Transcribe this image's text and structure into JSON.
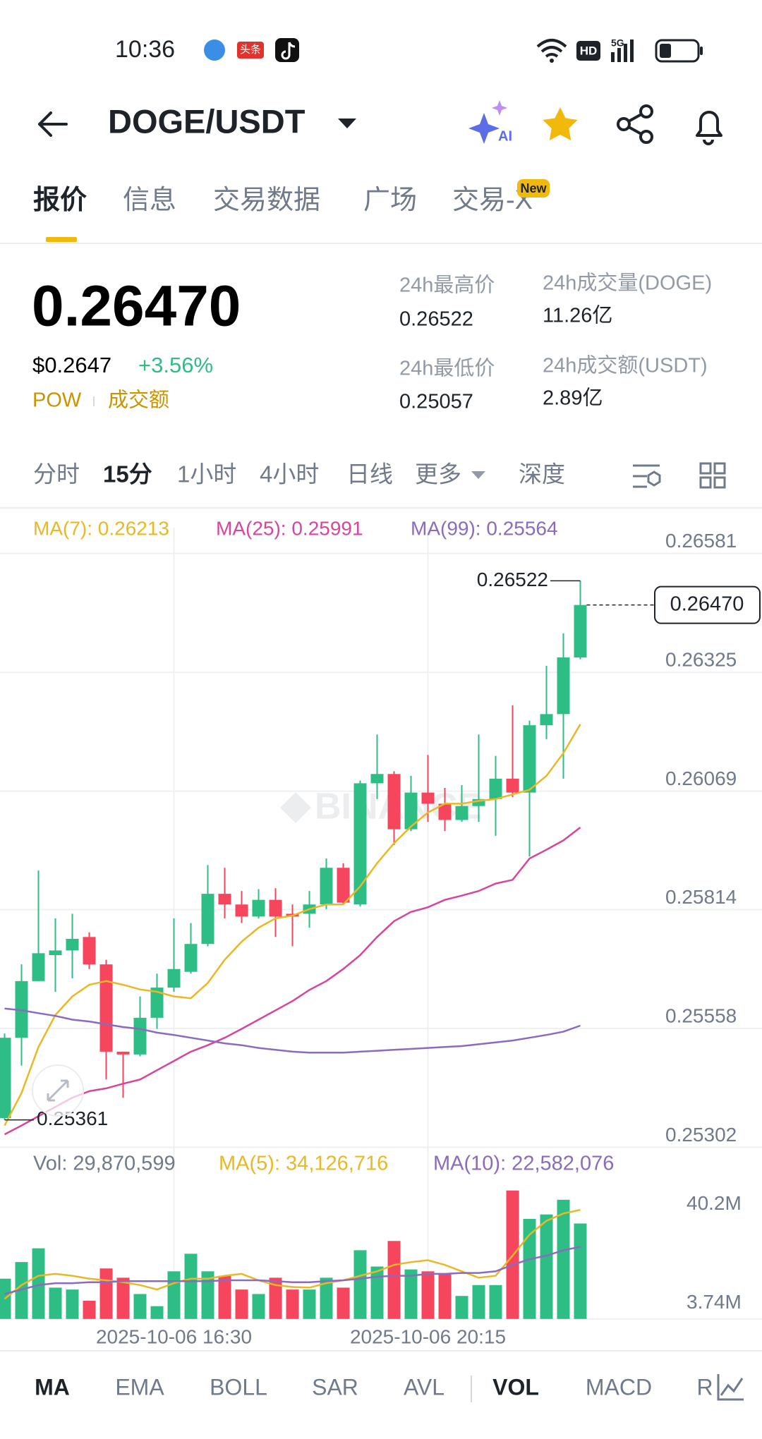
{
  "status_bar": {
    "time": "10:36",
    "badge": "头条",
    "hd": "HD",
    "network": "5G"
  },
  "header": {
    "pair": "DOGE/USDT",
    "ai": "AI"
  },
  "tabs": {
    "items": [
      "报价",
      "信息",
      "交易数据",
      "广场",
      "交易-X"
    ],
    "badge": "New"
  },
  "ticker": {
    "price": "0.26470",
    "usd": "$0.2647",
    "change": "+3.56%",
    "tags": [
      "POW",
      "成交额"
    ],
    "stats": [
      {
        "label": "24h最高价",
        "value": "0.26522"
      },
      {
        "label": "24h最低价",
        "value": "0.25057"
      },
      {
        "label": "24h成交量(DOGE)",
        "value": "11.26亿"
      },
      {
        "label": "24h成交额(USDT)",
        "value": "2.89亿"
      }
    ]
  },
  "intervals": {
    "items": [
      "分时",
      "15分",
      "1小时",
      "4小时",
      "日线",
      "更多",
      "深度"
    ]
  },
  "chart_data": {
    "type": "candlestick",
    "watermark": "BINANCE",
    "categories": [
      null,
      null,
      null,
      null,
      null,
      null,
      null,
      null,
      null,
      null,
      "2025-10-06 16:30",
      null,
      null,
      null,
      null,
      null,
      null,
      null,
      null,
      null,
      null,
      null,
      null,
      null,
      null,
      "2025-10-06 20:15",
      null,
      null,
      null,
      null,
      null,
      null,
      null,
      null,
      null
    ],
    "open": [
      0.25365,
      0.25538,
      0.2566,
      0.25716,
      0.25726,
      0.25755,
      0.25696,
      0.25508,
      0.25502,
      0.25581,
      0.25646,
      0.2568,
      0.2574,
      0.25848,
      0.25825,
      0.25799,
      0.25835,
      0.25805,
      0.25805,
      0.25825,
      0.25904,
      0.25825,
      0.26086,
      0.26106,
      0.25987,
      0.26066,
      0.26042,
      0.26007,
      0.26037,
      0.26052,
      0.26096,
      0.26066,
      0.26211,
      0.26235,
      0.26357
    ],
    "high": [
      0.25547,
      0.25696,
      0.25898,
      0.25795,
      0.25805,
      0.25765,
      0.25706,
      0.25508,
      0.25627,
      0.25676,
      0.25795,
      0.25785,
      0.2591,
      0.25904,
      0.25854,
      0.25858,
      0.2586,
      0.25825,
      0.25854,
      0.25924,
      0.25914,
      0.26092,
      0.26191,
      0.26112,
      0.26102,
      0.26147,
      0.26076,
      0.26082,
      0.26191,
      0.26145,
      0.26254,
      0.26221,
      0.26339,
      0.26409,
      0.26522
    ],
    "low": [
      0.25361,
      0.25478,
      0.2566,
      0.25637,
      0.25666,
      0.25686,
      0.25448,
      0.25409,
      0.25498,
      0.25557,
      0.25637,
      0.25676,
      0.25735,
      0.25795,
      0.25785,
      0.25795,
      0.25755,
      0.25735,
      0.25775,
      0.25815,
      0.25825,
      0.25821,
      0.26052,
      0.25953,
      0.25983,
      0.26003,
      0.25983,
      0.26003,
      0.26003,
      0.25973,
      0.26056,
      0.25928,
      0.26181,
      0.26096,
      0.26353
    ],
    "close": [
      0.25538,
      0.2566,
      0.2572,
      0.25726,
      0.25751,
      0.25696,
      0.25508,
      0.25502,
      0.25581,
      0.25646,
      0.25686,
      0.2574,
      0.25848,
      0.25825,
      0.25799,
      0.25835,
      0.25799,
      0.25799,
      0.25825,
      0.25904,
      0.25829,
      0.26086,
      0.26106,
      0.25987,
      0.26066,
      0.26042,
      0.26007,
      0.26037,
      0.26052,
      0.26096,
      0.26066,
      0.26211,
      0.26235,
      0.26357,
      0.2647
    ],
    "up_color": "#2ebd85",
    "down_color": "#f6465d",
    "ylim": [
      0.25302,
      0.26581
    ],
    "yticks": [
      0.26581,
      0.26325,
      0.26069,
      0.25814,
      0.25558,
      0.25302
    ],
    "grid": true,
    "current": {
      "value": 0.2647,
      "label": "0.26470"
    },
    "series": [
      {
        "name": "MA(7): 0.26213",
        "color": "#e9b824",
        "values": [
          0.25349,
          0.25419,
          0.25518,
          0.25587,
          0.25627,
          0.25652,
          0.2566,
          0.25652,
          0.25642,
          0.25637,
          0.25627,
          0.25623,
          0.25656,
          0.25706,
          0.25745,
          0.25775,
          0.25795,
          0.25801,
          0.25815,
          0.25825,
          0.25825,
          0.25864,
          0.25914,
          0.25957,
          0.25993,
          0.26023,
          0.26042,
          0.26042,
          0.26048,
          0.26052,
          0.26062,
          0.26072,
          0.26102,
          0.26151,
          0.26213
        ]
      },
      {
        "name": "MA(25): 0.25991",
        "color": "#d6479b",
        "values": [
          0.2533,
          0.25349,
          0.25369,
          0.25389,
          0.25409,
          0.25423,
          0.25429,
          0.25439,
          0.25448,
          0.25468,
          0.25488,
          0.25508,
          0.25522,
          0.25538,
          0.25557,
          0.25577,
          0.25597,
          0.25617,
          0.25641,
          0.2566,
          0.25686,
          0.25716,
          0.25755,
          0.25789,
          0.25809,
          0.25819,
          0.25835,
          0.25844,
          0.25854,
          0.2587,
          0.25878,
          0.25924,
          0.25943,
          0.25963,
          0.25991
        ]
      },
      {
        "name": "MA(99): 0.25564",
        "color": "#8b6bbd",
        "values": [
          0.25601,
          0.25597,
          0.25591,
          0.25585,
          0.25577,
          0.25573,
          0.25567,
          0.25561,
          0.25557,
          0.25549,
          0.25544,
          0.25538,
          0.25532,
          0.25526,
          0.25522,
          0.25516,
          0.25512,
          0.25508,
          0.25506,
          0.25506,
          0.25506,
          0.25508,
          0.2551,
          0.25512,
          0.25514,
          0.25516,
          0.25518,
          0.2552,
          0.25524,
          0.25528,
          0.25532,
          0.25538,
          0.25544,
          0.25551,
          0.25564
        ]
      }
    ],
    "volume": {
      "header": "Vol: 29,870,599",
      "values": [
        12600000,
        17800000,
        22100000,
        9800000,
        9200000,
        5700000,
        15800000,
        12900000,
        7800000,
        4000000,
        14900000,
        20400000,
        14900000,
        13500000,
        9200000,
        7800000,
        12900000,
        9200000,
        9200000,
        12900000,
        9800000,
        21500000,
        16400000,
        24400000,
        15500000,
        14900000,
        14100000,
        7200000,
        10600000,
        10600000,
        40200000,
        31300000,
        32700000,
        37300000,
        29870599
      ],
      "ylim": [
        0,
        40200000
      ],
      "yticks": [
        {
          "value": 40200000,
          "label": "40.2M"
        },
        {
          "value": 3740000,
          "label": "3.74M"
        }
      ],
      "series": [
        {
          "name": "MA(5): 34,126,716",
          "color": "#e9b824",
          "values": [
            6300000,
            10600000,
            13500000,
            14100000,
            13500000,
            12600000,
            12100000,
            11500000,
            10600000,
            9200000,
            11200000,
            12600000,
            12600000,
            13500000,
            14100000,
            12100000,
            10600000,
            10000000,
            9800000,
            11200000,
            12100000,
            13500000,
            14900000,
            16900000,
            17800000,
            18400000,
            16900000,
            14900000,
            12900000,
            13500000,
            19800000,
            26400000,
            30700000,
            33000000,
            34126716
          ]
        },
        {
          "name": "MA(10): 22,582,076",
          "color": "#8b6bbd",
          "values": [
            7800000,
            9200000,
            10600000,
            11200000,
            11200000,
            11500000,
            11500000,
            11800000,
            11800000,
            11800000,
            11800000,
            11800000,
            11800000,
            12100000,
            12100000,
            12100000,
            11800000,
            11500000,
            11500000,
            11800000,
            12100000,
            12600000,
            13200000,
            13500000,
            13500000,
            14100000,
            14100000,
            14400000,
            14400000,
            14900000,
            16900000,
            18700000,
            19800000,
            21500000,
            22582076
          ]
        }
      ]
    }
  },
  "indicators": {
    "items": [
      "MA",
      "EMA",
      "BOLL",
      "SAR",
      "AVL",
      "VOL",
      "MACD",
      "R"
    ]
  }
}
